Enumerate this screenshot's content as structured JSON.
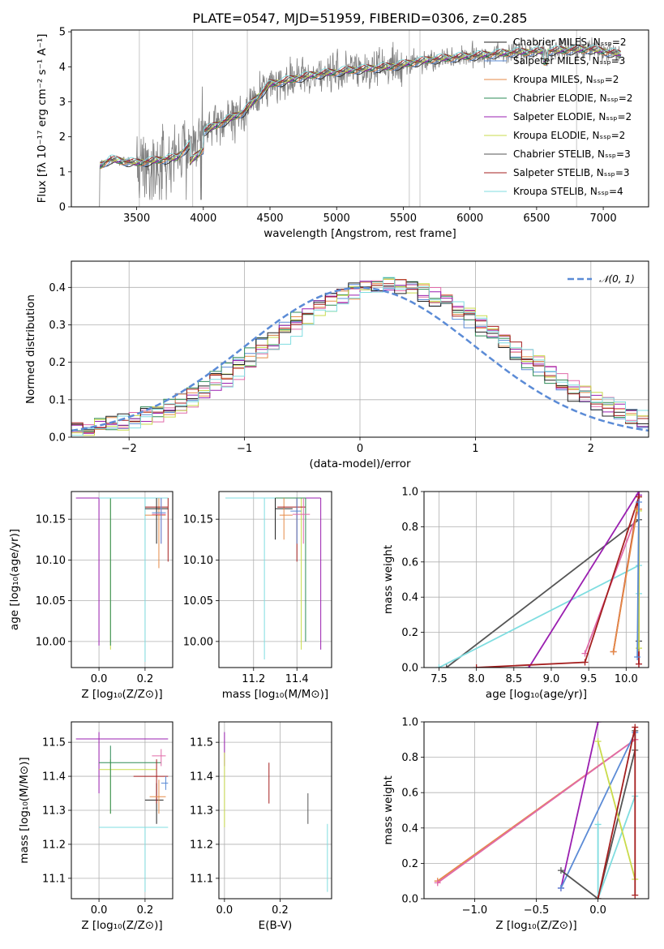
{
  "figure": {
    "title": "PLATE=0547, MJD=51959, FIBERID=0306, z=0.285"
  },
  "colors": {
    "c1": "#5b8bd6",
    "c2": "#e58a47",
    "c3": "#e06aa9",
    "c4": "#2e8b57",
    "c5": "#9a1fb0",
    "c6": "#c9db4b",
    "c7": "#222222",
    "c8": "#a51f1f",
    "c9": "#7fdde0",
    "gray": "#7f7f7f",
    "grid": "#b0b0b0",
    "normal": "#5b8bd6"
  },
  "chart_data": [
    {
      "type": "line",
      "panel": "spectrum",
      "xlabel": "wavelength [Angstrom, rest frame]",
      "ylabel": "Flux [fλ 10⁻¹⁷ erg cm⁻² s⁻¹ A⁻¹]",
      "xlim": [
        3010,
        7340
      ],
      "ylim": [
        0,
        5.05
      ],
      "xticks": [
        3500,
        4000,
        4500,
        5000,
        5500,
        6000,
        6500,
        7000
      ],
      "yticks": [
        0,
        1,
        2,
        3,
        4,
        5
      ],
      "x_range": [
        3215,
        7135
      ],
      "legend_position": "upper right",
      "series": [
        {
          "name": "Chabrier MILES, Nₛₛₚ=2",
          "color": "#222222"
        },
        {
          "name": "Salpeter MILES, Nₛₛₚ=3",
          "color": "#5b8bd6"
        },
        {
          "name": "Kroupa MILES, Nₛₛₚ=2",
          "color": "#e58a47"
        },
        {
          "name": "Chabrier ELODIE, Nₛₛₚ=2",
          "color": "#2e8b57"
        },
        {
          "name": "Salpeter ELODIE, Nₛₛₚ=2",
          "color": "#9a1fb0"
        },
        {
          "name": "Kroupa ELODIE, Nₛₛₚ=2",
          "color": "#c9db4b"
        },
        {
          "name": "Chabrier STELIB, Nₛₛₚ=3",
          "color": "#555555"
        },
        {
          "name": "Salpeter STELIB, Nₛₛₚ=3",
          "color": "#a51f1f"
        },
        {
          "name": "Kroupa STELIB, Nₛₛₚ=4",
          "color": "#7fdde0"
        }
      ],
      "continuum": [
        [
          3215,
          1.15
        ],
        [
          3300,
          1.35
        ],
        [
          3500,
          1.25
        ],
        [
          3800,
          1.4
        ],
        [
          4000,
          2.15
        ],
        [
          4300,
          2.7
        ],
        [
          4500,
          3.5
        ],
        [
          4800,
          3.75
        ],
        [
          5100,
          3.9
        ],
        [
          5400,
          4.0
        ],
        [
          5700,
          4.2
        ],
        [
          6000,
          4.3
        ],
        [
          6300,
          4.4
        ],
        [
          6600,
          4.45
        ],
        [
          6900,
          4.5
        ],
        [
          7135,
          4.35
        ]
      ]
    },
    {
      "type": "line",
      "panel": "residuals",
      "xlabel": "(data-model)/error",
      "ylabel": "Normed distribution",
      "xlim": [
        -2.5,
        2.5
      ],
      "ylim": [
        0,
        0.47
      ],
      "xticks": [
        -2,
        -1,
        0,
        1,
        2
      ],
      "yticks": [
        0.0,
        0.1,
        0.2,
        0.3,
        0.4
      ],
      "legend": "𝒩(0, 1)",
      "legend_position": "upper right",
      "bin_width": 0.1,
      "note": "step histograms for each of 9 fits plus dashed standard normal"
    },
    {
      "type": "scatter",
      "panel": "age_vs_Z",
      "xlabel": "Z [log₁₀(Z/Z⊙)]",
      "ylabel": "age [log₁₀(age/yr)]",
      "xlim": [
        -0.12,
        0.32
      ],
      "ylim": [
        9.968,
        10.184
      ],
      "xticks": [
        0.0,
        0.2
      ],
      "yticks": [
        10.0,
        10.05,
        10.1,
        10.15
      ],
      "bars": [
        {
          "c": "#9a1fb0",
          "x": 0.0,
          "y": 10.176,
          "xlo": -0.1,
          "xhi": 0.3,
          "ylo": 9.995,
          "yhi": 10.176
        },
        {
          "c": "#c9db4b",
          "x": 0.05,
          "y": 10.176,
          "xlo": 0.05,
          "xhi": 0.3,
          "ylo": 9.99,
          "yhi": 10.176
        },
        {
          "c": "#2e8b57",
          "x": 0.05,
          "y": 10.176,
          "xlo": 0.05,
          "xhi": 0.3,
          "ylo": 9.995,
          "yhi": 10.176
        },
        {
          "c": "#7fdde0",
          "x": 0.2,
          "y": 10.176,
          "xlo": 0.0,
          "xhi": 0.3,
          "ylo": 9.975,
          "yhi": 10.176
        },
        {
          "c": "#e58a47",
          "x": 0.26,
          "y": 10.155,
          "xlo": 0.2,
          "xhi": 0.29,
          "ylo": 10.09,
          "yhi": 10.176
        },
        {
          "c": "#a51f1f",
          "x": 0.3,
          "y": 10.165,
          "xlo": 0.2,
          "xhi": 0.3,
          "ylo": 10.098,
          "yhi": 10.176
        },
        {
          "c": "#222222",
          "x": 0.25,
          "y": 10.163,
          "xlo": 0.2,
          "xhi": 0.3,
          "ylo": 10.12,
          "yhi": 10.176
        },
        {
          "c": "#e06aa9",
          "x": 0.27,
          "y": 10.156,
          "xlo": 0.23,
          "xhi": 0.29,
          "ylo": 10.12,
          "yhi": 10.176
        },
        {
          "c": "#5b8bd6",
          "x": 0.27,
          "y": 10.158,
          "xlo": 0.23,
          "xhi": 0.29,
          "ylo": 10.12,
          "yhi": 10.176
        }
      ]
    },
    {
      "type": "scatter",
      "panel": "age_vs_mass",
      "xlabel": "mass [log₁₀(M/M⊙)]",
      "ylabel": "",
      "xlim": [
        11.04,
        11.56
      ],
      "ylim": [
        9.968,
        10.184
      ],
      "xticks": [
        11.2,
        11.4
      ],
      "yticks": [
        10.0,
        10.05,
        10.1,
        10.15
      ],
      "bars": [
        {
          "c": "#7fdde0",
          "x": 11.25,
          "y": 10.176,
          "xlo": 11.07,
          "xhi": 11.42,
          "ylo": 9.978,
          "yhi": 10.176
        },
        {
          "c": "#9a1fb0",
          "x": 11.51,
          "y": 10.176,
          "xlo": 11.3,
          "xhi": 11.51,
          "ylo": 9.99,
          "yhi": 10.176
        },
        {
          "c": "#c9db4b",
          "x": 11.42,
          "y": 10.176,
          "xlo": 11.3,
          "xhi": 11.44,
          "ylo": 9.99,
          "yhi": 10.176
        },
        {
          "c": "#2e8b57",
          "x": 11.44,
          "y": 10.176,
          "xlo": 11.3,
          "xhi": 11.44,
          "ylo": 10.0,
          "yhi": 10.176
        },
        {
          "c": "#222222",
          "x": 11.3,
          "y": 10.163,
          "xlo": 11.3,
          "xhi": 11.38,
          "ylo": 10.125,
          "yhi": 10.176
        },
        {
          "c": "#e58a47",
          "x": 11.34,
          "y": 10.155,
          "xlo": 11.32,
          "xhi": 11.38,
          "ylo": 10.125,
          "yhi": 10.176
        },
        {
          "c": "#a51f1f",
          "x": 11.4,
          "y": 10.165,
          "xlo": 11.31,
          "xhi": 11.44,
          "ylo": 10.098,
          "yhi": 10.176
        },
        {
          "c": "#5b8bd6",
          "x": 11.4,
          "y": 10.16,
          "xlo": 11.37,
          "xhi": 11.42,
          "ylo": 10.12,
          "yhi": 10.176
        },
        {
          "c": "#e06aa9",
          "x": 11.43,
          "y": 10.156,
          "xlo": 11.38,
          "xhi": 11.46,
          "ylo": 10.12,
          "yhi": 10.176
        }
      ]
    },
    {
      "type": "line",
      "panel": "massweight_vs_age",
      "xlabel": "age [log₁₀(age/yr)]",
      "ylabel": "mass weight",
      "xlim": [
        7.3,
        10.3
      ],
      "ylim": [
        0,
        1.0
      ],
      "xticks": [
        7.5,
        8.0,
        8.5,
        9.0,
        9.5,
        10.0
      ],
      "yticks": [
        0.0,
        0.2,
        0.4,
        0.6,
        0.8,
        1.0
      ],
      "series": [
        {
          "c": "#555555",
          "x": [
            7.6,
            10.17,
            10.17
          ],
          "y": [
            0.0,
            0.84,
            0.15
          ]
        },
        {
          "c": "#7fdde0",
          "x": [
            7.5,
            10.17,
            10.17
          ],
          "y": [
            0.0,
            0.58,
            0.42
          ]
        },
        {
          "c": "#9a1fb0",
          "x": [
            8.7,
            10.17,
            10.17
          ],
          "y": [
            0.0,
            1.0,
            0.98
          ]
        },
        {
          "c": "#e06aa9",
          "x": [
            9.45,
            10.17,
            10.17
          ],
          "y": [
            0.08,
            0.9,
            0.02
          ]
        },
        {
          "c": "#a51f1f",
          "x": [
            8.0,
            9.45,
            10.17,
            10.17
          ],
          "y": [
            0.0,
            0.03,
            0.97,
            0.02
          ]
        },
        {
          "c": "#a51f1f",
          "x": [
            9.83,
            10.17
          ],
          "y": [
            0.09,
            0.97
          ]
        },
        {
          "c": "#e58a47",
          "x": [
            9.83,
            10.15,
            10.17
          ],
          "y": [
            0.09,
            0.9,
            0.9
          ]
        },
        {
          "c": "#c9db4b",
          "x": [
            10.17,
            10.17
          ],
          "y": [
            0.89,
            0.11
          ]
        },
        {
          "c": "#5b8bd6",
          "x": [
            10.15,
            10.17
          ],
          "y": [
            0.06,
            0.94
          ]
        }
      ]
    },
    {
      "type": "scatter",
      "panel": "mass_vs_Z",
      "xlabel": "Z [log₁₀(Z/Z⊙)]",
      "ylabel": "mass [log₁₀(M/M⊙)]",
      "xlim": [
        -0.12,
        0.32
      ],
      "ylim": [
        11.04,
        11.56
      ],
      "xticks": [
        0.0,
        0.2
      ],
      "yticks": [
        11.1,
        11.2,
        11.3,
        11.4,
        11.5
      ],
      "bars": [
        {
          "c": "#9a1fb0",
          "x": 0.0,
          "y": 11.51,
          "xlo": -0.1,
          "xhi": 0.3,
          "ylo": 11.35,
          "yhi": 11.53
        },
        {
          "c": "#7fdde0",
          "x": 0.2,
          "y": 11.25,
          "xlo": 0.0,
          "xhi": 0.3,
          "ylo": 11.06,
          "yhi": 11.25
        },
        {
          "c": "#c9db4b",
          "x": 0.05,
          "y": 11.42,
          "xlo": 0.0,
          "xhi": 0.25,
          "ylo": 11.29,
          "yhi": 11.45
        },
        {
          "c": "#2e8b57",
          "x": 0.05,
          "y": 11.44,
          "xlo": 0.0,
          "xhi": 0.27,
          "ylo": 11.29,
          "yhi": 11.49
        },
        {
          "c": "#222222",
          "x": 0.25,
          "y": 11.33,
          "xlo": 0.2,
          "xhi": 0.28,
          "ylo": 11.26,
          "yhi": 11.38
        },
        {
          "c": "#a51f1f",
          "x": 0.25,
          "y": 11.4,
          "xlo": 0.15,
          "xhi": 0.3,
          "ylo": 11.32,
          "yhi": 11.45
        },
        {
          "c": "#e58a47",
          "x": 0.26,
          "y": 11.34,
          "xlo": 0.22,
          "xhi": 0.29,
          "ylo": 11.29,
          "yhi": 11.39
        },
        {
          "c": "#e06aa9",
          "x": 0.27,
          "y": 11.46,
          "xlo": 0.23,
          "xhi": 0.29,
          "ylo": 11.43,
          "yhi": 11.48
        },
        {
          "c": "#5b8bd6",
          "x": 0.29,
          "y": 11.38,
          "xlo": 0.27,
          "xhi": 0.3,
          "ylo": 11.36,
          "yhi": 11.4
        }
      ]
    },
    {
      "type": "scatter",
      "panel": "mass_vs_ebv",
      "xlabel": "E(B-V)",
      "ylabel": "",
      "xlim": [
        -0.02,
        0.385
      ],
      "ylim": [
        11.04,
        11.56
      ],
      "xticks": [
        0.0,
        0.2
      ],
      "yticks": [
        11.1,
        11.2,
        11.3,
        11.4,
        11.5
      ],
      "bars": [
        {
          "c": "#9a1fb0",
          "x": 0.0,
          "ylo": 11.43,
          "yhi": 11.53
        },
        {
          "c": "#c9db4b",
          "x": 0.0,
          "ylo": 11.25,
          "yhi": 11.47
        },
        {
          "c": "#a51f1f",
          "x": 0.16,
          "ylo": 11.32,
          "yhi": 11.44
        },
        {
          "c": "#555555",
          "x": 0.3,
          "ylo": 11.26,
          "yhi": 11.35
        },
        {
          "c": "#7fdde0",
          "x": 0.37,
          "ylo": 11.06,
          "yhi": 11.26
        }
      ]
    },
    {
      "type": "line",
      "panel": "massweight_vs_Z",
      "xlabel": "Z [log₁₀(Z/Z⊙)]",
      "ylabel": "mass weight",
      "xlim": [
        -1.41,
        0.41
      ],
      "ylim": [
        0,
        1.0
      ],
      "xticks": [
        -1.0,
        -0.5,
        0.0
      ],
      "yticks": [
        0.0,
        0.2,
        0.4,
        0.6,
        0.8,
        1.0
      ],
      "series": [
        {
          "c": "#e58a47",
          "x": [
            -1.3,
            0.3
          ],
          "y": [
            0.1,
            0.9
          ]
        },
        {
          "c": "#e06aa9",
          "x": [
            -1.3,
            0.3
          ],
          "y": [
            0.09,
            0.9
          ]
        },
        {
          "c": "#9a1fb0",
          "x": [
            -0.3,
            0.0
          ],
          "y": [
            0.06,
            1.0
          ]
        },
        {
          "c": "#5b8bd6",
          "x": [
            -0.3,
            0.3
          ],
          "y": [
            0.06,
            0.94
          ]
        },
        {
          "c": "#555555",
          "x": [
            -0.3,
            0.0,
            0.3,
            0.3
          ],
          "y": [
            0.16,
            0.0,
            0.84,
            0.95
          ]
        },
        {
          "c": "#7fdde0",
          "x": [
            0.0,
            0.0,
            0.3
          ],
          "y": [
            0.42,
            0.0,
            0.58
          ]
        },
        {
          "c": "#c9db4b",
          "x": [
            0.0,
            0.3
          ],
          "y": [
            0.89,
            0.11
          ]
        },
        {
          "c": "#a51f1f",
          "x": [
            0.0,
            0.3,
            0.3
          ],
          "y": [
            0.0,
            0.97,
            0.02
          ]
        }
      ]
    }
  ]
}
